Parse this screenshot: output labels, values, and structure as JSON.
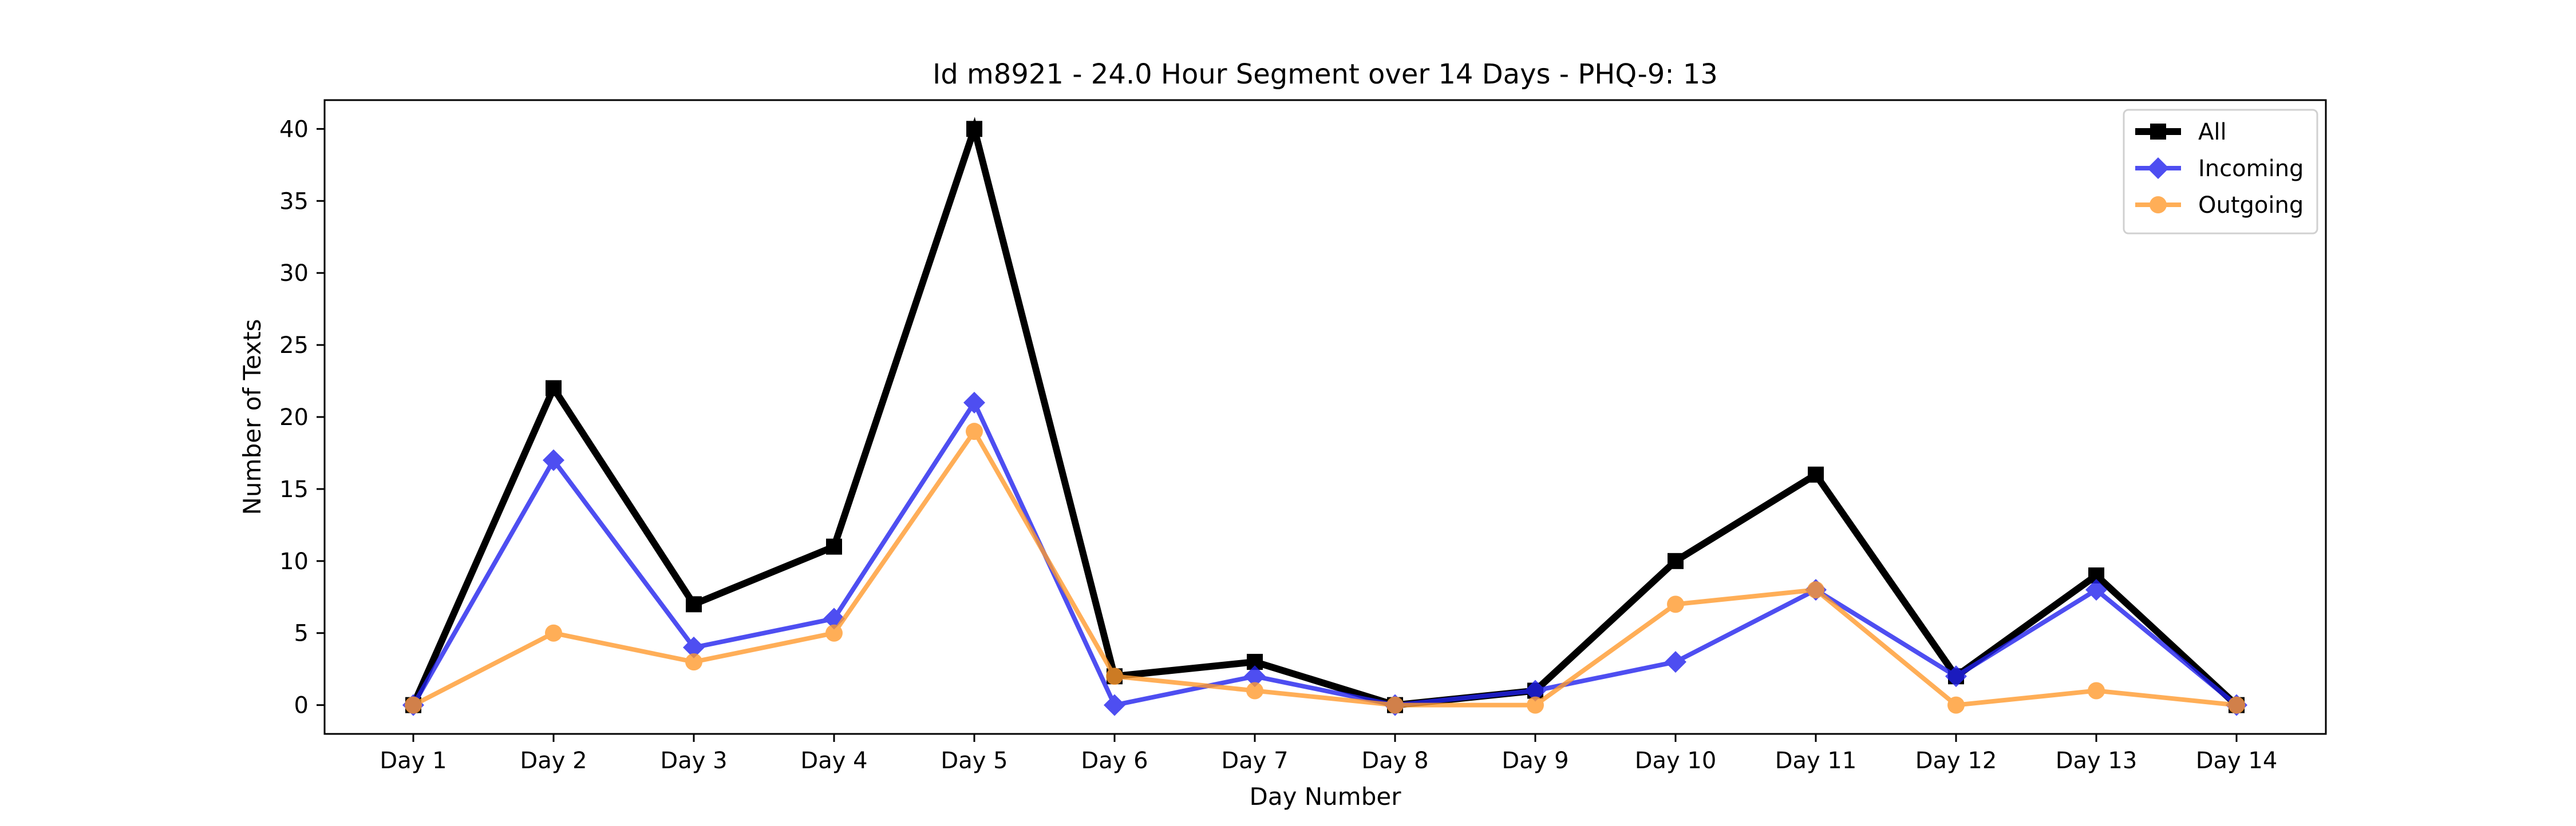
{
  "chart_data": {
    "type": "line",
    "title": "Id m8921 - 24.0 Hour Segment over 14 Days - PHQ-9: 13",
    "xlabel": "Day Number",
    "ylabel": "Number of Texts",
    "categories": [
      "Day 1",
      "Day 2",
      "Day 3",
      "Day 4",
      "Day 5",
      "Day 6",
      "Day 7",
      "Day 8",
      "Day 9",
      "Day 10",
      "Day 11",
      "Day 12",
      "Day 13",
      "Day 14"
    ],
    "ylim": [
      -2,
      42
    ],
    "yticks": [
      0,
      5,
      10,
      15,
      20,
      25,
      30,
      35,
      40
    ],
    "grid": false,
    "legend_position": "top-right",
    "series": [
      {
        "name": "All",
        "color": "#000000",
        "marker": "square",
        "values": [
          0,
          22,
          7,
          11,
          40,
          2,
          3,
          0,
          1,
          10,
          16,
          2,
          9,
          0
        ]
      },
      {
        "name": "Incoming",
        "color": "#2222ee",
        "marker": "diamond",
        "values": [
          0,
          17,
          4,
          6,
          21,
          0,
          2,
          0,
          1,
          3,
          8,
          2,
          8,
          0
        ]
      },
      {
        "name": "Outgoing",
        "color": "#ff9a2e",
        "marker": "circle",
        "values": [
          0,
          5,
          3,
          5,
          19,
          2,
          1,
          0,
          0,
          7,
          8,
          0,
          1,
          0
        ]
      }
    ]
  }
}
